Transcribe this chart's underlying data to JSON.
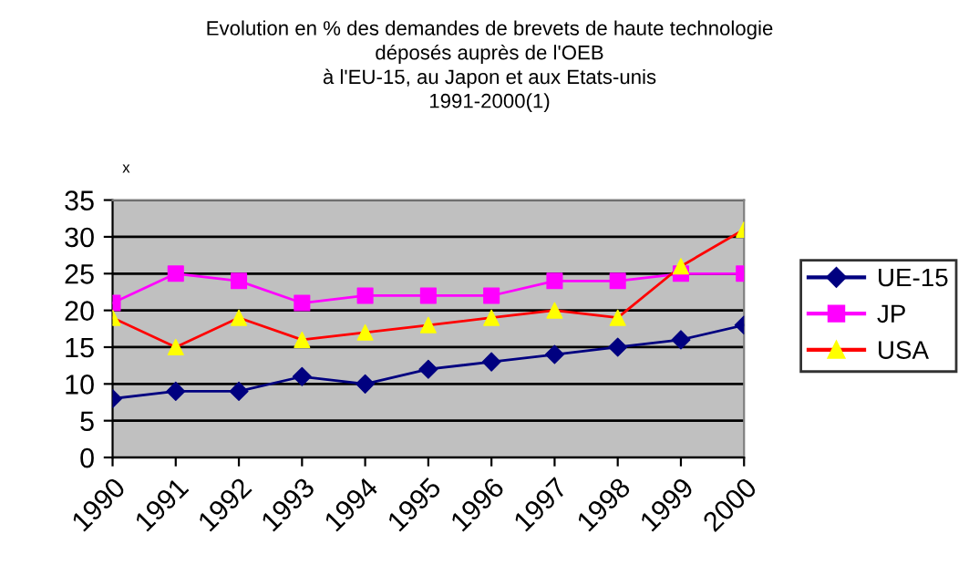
{
  "chart_data": {
    "type": "line",
    "title": "Evolution en % des demandes de brevets de haute technologie\ndéposés auprès de l'OEB\nà l'EU-15, au Japon et aux Etats-unis\n1991-2000(1)",
    "annotations": [
      "x"
    ],
    "categories": [
      "1990",
      "1991",
      "1992",
      "1993",
      "1994",
      "1995",
      "1996",
      "1997",
      "1998",
      "1999",
      "2000"
    ],
    "series": [
      {
        "name": "UE-15",
        "color": "#000080",
        "marker": "diamond",
        "values": [
          8,
          9,
          9,
          11,
          10,
          12,
          13,
          14,
          15,
          16,
          18
        ]
      },
      {
        "name": "JP",
        "color": "#ff00ff",
        "marker": "square",
        "values": [
          21,
          25,
          24,
          21,
          22,
          22,
          22,
          24,
          24,
          25,
          25
        ]
      },
      {
        "name": "USA",
        "color": "#ff0000",
        "marker": "triangle",
        "colors": [
          "#ffff00",
          "#ffff00",
          "#ffff00",
          "#ffff00",
          "#ffff00",
          "#ffff00",
          "#ffff00",
          "#ffff00",
          "#ffff00",
          "#ffff00",
          "#ffff00"
        ],
        "values": [
          19,
          15,
          19,
          16,
          17,
          18,
          19,
          20,
          19,
          26,
          31
        ]
      }
    ],
    "ylim": [
      0,
      35
    ],
    "yticks": [
      0,
      5,
      10,
      15,
      20,
      25,
      30,
      35
    ],
    "grid": "y",
    "legend": "right",
    "line_style": "solid"
  }
}
